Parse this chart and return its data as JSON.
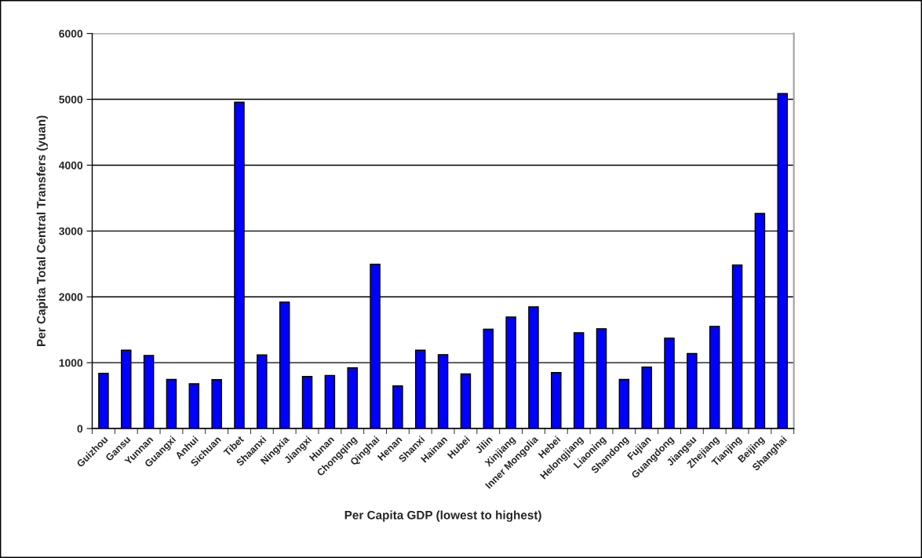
{
  "chart_data": {
    "type": "bar",
    "xlabel": "Per Capita GDP (lowest to highest)",
    "ylabel": "Per Capita Total Central Transfers (yuan)",
    "categories": [
      "Guizhou",
      "Gansu",
      "Yunnan",
      "Guangxi",
      "Anhui",
      "Sichuan",
      "Tibet",
      "Shaanxi",
      "Ningxia",
      "Jiangxi",
      "Hunan",
      "Chongqing",
      "Qinghai",
      "Henan",
      "Shanxi",
      "Hainan",
      "Hubei",
      "Jilin",
      "Xinjiang",
      "Inner Mongolia",
      "Hebei",
      "Helongjiang",
      "Liaoning",
      "Shandong",
      "Fujian",
      "Guangdong",
      "Jiangsu",
      "Zhejiang",
      "Tianjing",
      "Beijing",
      "Shanghai"
    ],
    "values": [
      840,
      1190,
      1110,
      746,
      680,
      742,
      4956,
      1119,
      1921,
      790,
      806,
      921,
      2496,
      647,
      1190,
      1123,
      829,
      1508,
      1694,
      1849,
      849,
      1456,
      1516,
      746,
      933,
      1373,
      1139,
      1552,
      2484,
      3266,
      5087
    ],
    "color": "#0000ff",
    "ylim": [
      0,
      6000
    ],
    "yticks": [
      0,
      1000,
      2000,
      3000,
      4000,
      5000,
      6000
    ],
    "grid": "y",
    "legend": false
  }
}
